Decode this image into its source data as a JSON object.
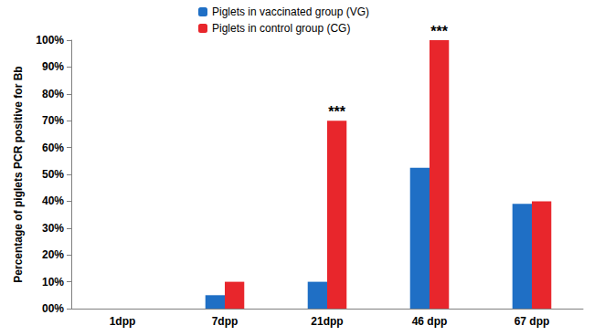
{
  "chart_data": {
    "type": "bar",
    "y_label": "Percentage of piglets PCR positive for Bb",
    "categories": [
      "1dpp",
      "7dpp",
      "21dpp",
      "46 dpp",
      "67 dpp"
    ],
    "series": [
      {
        "name": "Piglets in vaccinated group (VG)",
        "color": "#1F6FC5",
        "values": [
          0,
          5,
          10,
          52.5,
          39
        ]
      },
      {
        "name": "Piglets in control group (CG)",
        "color": "#E8262C",
        "values": [
          0,
          10,
          70,
          100,
          40
        ]
      }
    ],
    "annotations": [
      {
        "text": "***",
        "category": "21dpp",
        "series": "Piglets in control group (CG)"
      },
      {
        "text": "***",
        "category": "46 dpp",
        "series": "Piglets in control group (CG)"
      }
    ],
    "ylim": [
      0,
      100
    ],
    "yticks": [
      {
        "value": 0,
        "label": "00%"
      },
      {
        "value": 10,
        "label": "10%"
      },
      {
        "value": 20,
        "label": "20%"
      },
      {
        "value": 30,
        "label": "30%"
      },
      {
        "value": 40,
        "label": "40%"
      },
      {
        "value": 50,
        "label": "50%"
      },
      {
        "value": 60,
        "label": "60%"
      },
      {
        "value": 70,
        "label": "70%"
      },
      {
        "value": 80,
        "label": "80%"
      },
      {
        "value": 90,
        "label": "90%"
      },
      {
        "value": 100,
        "label": "100%"
      }
    ],
    "grid": false,
    "legend": "top"
  }
}
